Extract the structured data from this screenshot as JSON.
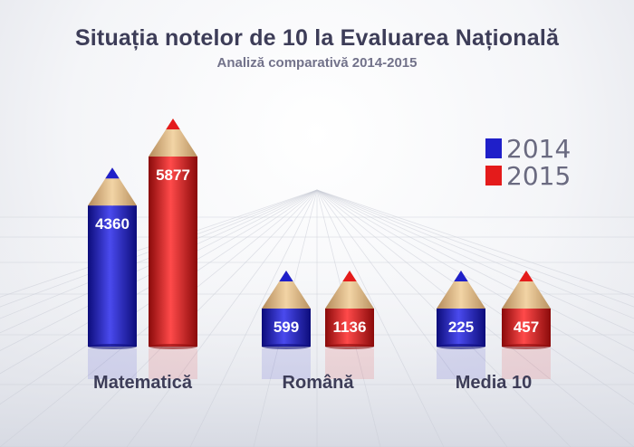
{
  "chart_data": {
    "type": "bar",
    "title": "Situația notelor de 10 la Evaluarea Națională",
    "subtitle": "Analiză comparativă 2014-2015",
    "categories": [
      "Matematică",
      "Română",
      "Media 10"
    ],
    "series": [
      {
        "name": "2014",
        "color": "#1f1fc9",
        "values": [
          4360,
          599,
          225
        ]
      },
      {
        "name": "2015",
        "color": "#e41b1b",
        "values": [
          5877,
          1136,
          457
        ]
      }
    ],
    "legend": "top-right",
    "grid": false
  }
}
